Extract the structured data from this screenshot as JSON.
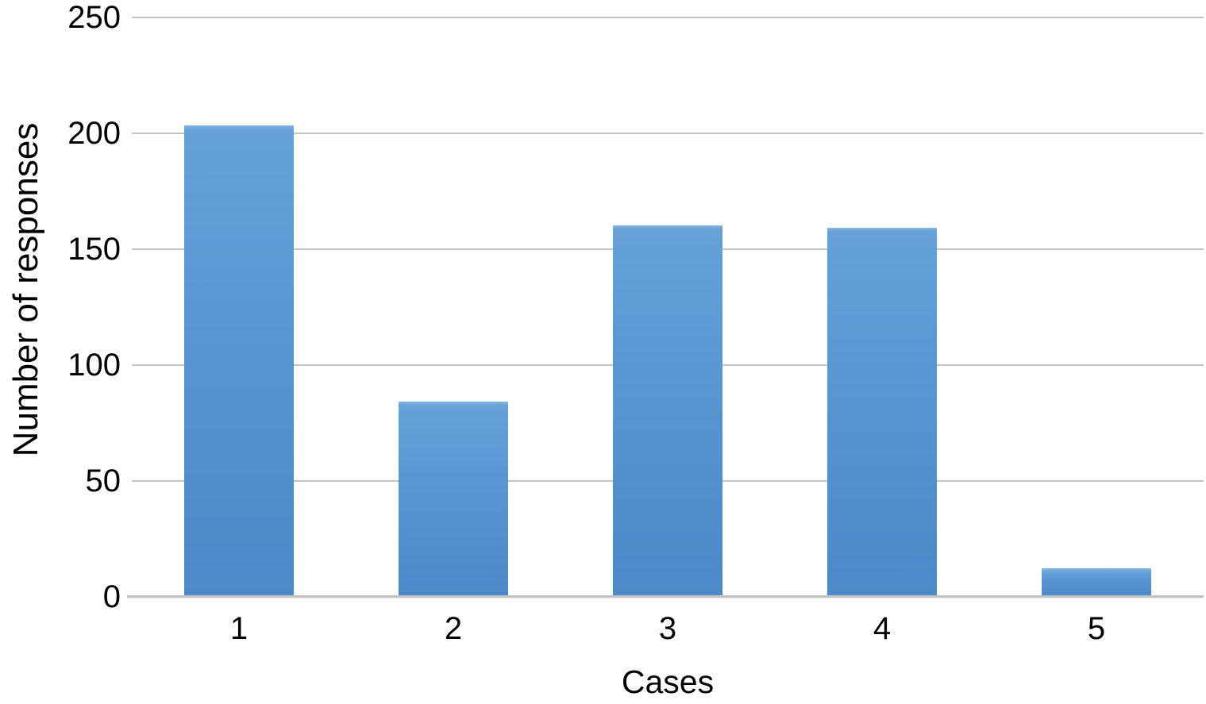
{
  "figure": {
    "background": "#ffffff",
    "text_color": "#000000"
  },
  "chart_data": {
    "type": "bar",
    "title": "",
    "xlabel": "Cases",
    "ylabel": "Number of responses",
    "categories": [
      "1",
      "2",
      "3",
      "4",
      "5"
    ],
    "values": [
      203,
      84,
      160,
      159,
      12
    ],
    "yticks": [
      0,
      50,
      100,
      150,
      200,
      250
    ],
    "ylim": [
      0,
      250
    ],
    "grid": "horizontal",
    "legend": "none",
    "bar_color": "#5b97d3",
    "bar_gradient_top": "#85b3e1",
    "bar_gradient_bottom": "#4d89c8",
    "gridline_color": "#c4c4c4",
    "axis_line_color": "#c2c2c2"
  }
}
